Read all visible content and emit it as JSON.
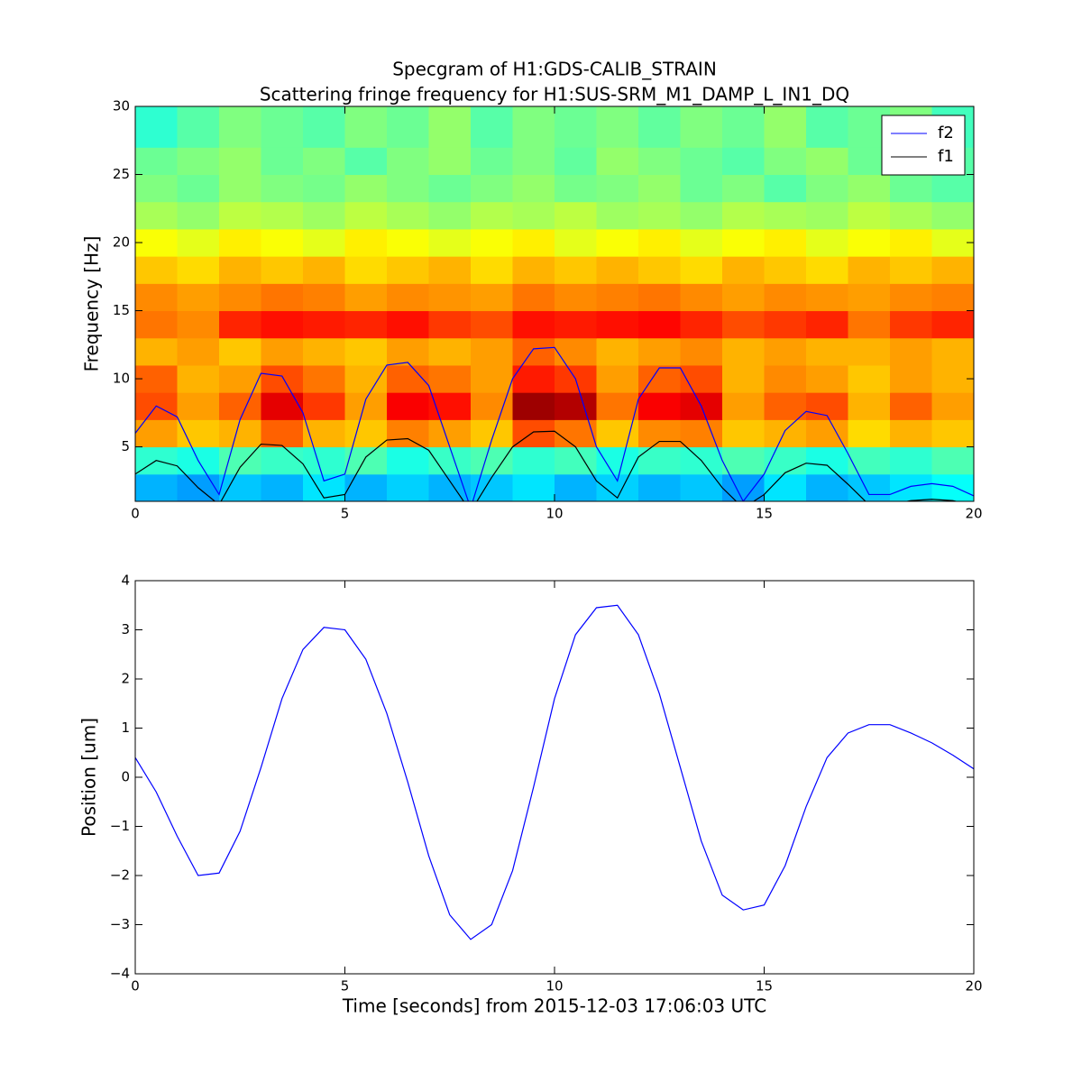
{
  "chart_data": [
    {
      "type": "heatmap",
      "title": "Specgram of H1:GDS-CALIB_STRAIN",
      "subtitle": "Scattering fringe frequency for H1:SUS-SRM_M1_DAMP_L_IN1_DQ",
      "ylabel": "Frequency [Hz]",
      "cmap": "jet",
      "xlim": [
        0,
        20
      ],
      "xticks": [
        0,
        5,
        10,
        15,
        20
      ],
      "ylim": [
        1,
        30
      ],
      "yticks": [
        5,
        10,
        15,
        20,
        25,
        30
      ],
      "xbins": [
        0,
        1,
        2,
        3,
        4,
        5,
        6,
        7,
        8,
        9,
        10,
        11,
        12,
        13,
        14,
        15,
        16,
        17,
        18,
        19,
        20
      ],
      "ybins": [
        1,
        3,
        5,
        7,
        9,
        11,
        13,
        15,
        17,
        19,
        21,
        23,
        25,
        27,
        30
      ],
      "z": [
        [
          0.3,
          0.28,
          0.32,
          0.3,
          0.35,
          0.3,
          0.33,
          0.3,
          0.32,
          0.35,
          0.3,
          0.33,
          0.3,
          0.32,
          0.28,
          0.35,
          0.3,
          0.32,
          0.35,
          0.38
        ],
        [
          0.42,
          0.4,
          0.45,
          0.43,
          0.42,
          0.45,
          0.4,
          0.43,
          0.45,
          0.42,
          0.44,
          0.4,
          0.43,
          0.42,
          0.45,
          0.43,
          0.4,
          0.44,
          0.42,
          0.45
        ],
        [
          0.72,
          0.68,
          0.7,
          0.78,
          0.7,
          0.68,
          0.75,
          0.72,
          0.68,
          0.8,
          0.76,
          0.68,
          0.74,
          0.75,
          0.68,
          0.7,
          0.72,
          0.66,
          0.7,
          0.68
        ],
        [
          0.8,
          0.72,
          0.78,
          0.9,
          0.82,
          0.72,
          0.88,
          0.86,
          0.74,
          0.97,
          0.95,
          0.76,
          0.88,
          0.9,
          0.72,
          0.78,
          0.8,
          0.7,
          0.78,
          0.72
        ],
        [
          0.78,
          0.7,
          0.72,
          0.8,
          0.76,
          0.7,
          0.78,
          0.76,
          0.72,
          0.85,
          0.82,
          0.72,
          0.78,
          0.8,
          0.7,
          0.74,
          0.72,
          0.68,
          0.72,
          0.7
        ],
        [
          0.7,
          0.72,
          0.68,
          0.72,
          0.7,
          0.68,
          0.72,
          0.7,
          0.72,
          0.78,
          0.74,
          0.7,
          0.72,
          0.74,
          0.7,
          0.72,
          0.7,
          0.7,
          0.72,
          0.7
        ],
        [
          0.76,
          0.74,
          0.84,
          0.86,
          0.85,
          0.84,
          0.86,
          0.82,
          0.8,
          0.86,
          0.85,
          0.86,
          0.87,
          0.84,
          0.8,
          0.82,
          0.84,
          0.76,
          0.82,
          0.84
        ],
        [
          0.74,
          0.72,
          0.74,
          0.76,
          0.75,
          0.72,
          0.74,
          0.73,
          0.72,
          0.76,
          0.74,
          0.75,
          0.76,
          0.74,
          0.72,
          0.74,
          0.73,
          0.72,
          0.74,
          0.75
        ],
        [
          0.68,
          0.66,
          0.7,
          0.68,
          0.7,
          0.66,
          0.68,
          0.7,
          0.66,
          0.7,
          0.68,
          0.7,
          0.68,
          0.66,
          0.7,
          0.68,
          0.66,
          0.7,
          0.68,
          0.7
        ],
        [
          0.62,
          0.6,
          0.64,
          0.62,
          0.6,
          0.64,
          0.62,
          0.6,
          0.62,
          0.64,
          0.6,
          0.62,
          0.64,
          0.6,
          0.62,
          0.64,
          0.6,
          0.62,
          0.64,
          0.6
        ],
        [
          0.54,
          0.52,
          0.56,
          0.55,
          0.53,
          0.56,
          0.54,
          0.52,
          0.55,
          0.54,
          0.56,
          0.53,
          0.54,
          0.52,
          0.55,
          0.54,
          0.53,
          0.56,
          0.54,
          0.52
        ],
        [
          0.5,
          0.48,
          0.52,
          0.5,
          0.49,
          0.52,
          0.5,
          0.48,
          0.5,
          0.52,
          0.49,
          0.5,
          0.52,
          0.48,
          0.5,
          0.46,
          0.5,
          0.52,
          0.48,
          0.46
        ],
        [
          0.48,
          0.5,
          0.52,
          0.48,
          0.5,
          0.46,
          0.5,
          0.52,
          0.48,
          0.5,
          0.47,
          0.52,
          0.5,
          0.48,
          0.46,
          0.5,
          0.52,
          0.48,
          0.5,
          0.46
        ],
        [
          0.42,
          0.46,
          0.5,
          0.48,
          0.46,
          0.5,
          0.48,
          0.52,
          0.46,
          0.5,
          0.48,
          0.5,
          0.47,
          0.5,
          0.48,
          0.52,
          0.46,
          0.48,
          0.5,
          0.44
        ]
      ],
      "x": [
        0,
        0.5,
        1,
        1.5,
        2,
        2.5,
        3,
        3.5,
        4,
        4.5,
        5,
        5.5,
        6,
        6.5,
        7,
        7.5,
        8,
        8.5,
        9,
        9.5,
        10,
        10.5,
        11,
        11.5,
        12,
        12.5,
        13,
        13.5,
        14,
        14.5,
        15,
        15.5,
        16,
        16.5,
        17,
        17.5,
        18,
        18.5,
        19,
        19.5,
        20
      ],
      "legend": "upper right",
      "series": [
        {
          "name": "f2",
          "color": "#0000ff",
          "values": [
            6,
            8.0,
            7.2,
            4,
            1.5,
            7,
            10.4,
            10.2,
            7.5,
            2.5,
            3,
            8.5,
            11,
            11.2,
            9.5,
            5,
            0.5,
            5.5,
            10,
            12.2,
            12.3,
            10,
            5,
            2.5,
            8.5,
            10.8,
            10.8,
            8,
            4,
            1,
            3,
            6.2,
            7.6,
            7.3,
            4.5,
            1.5,
            1.5,
            2.1,
            2.3,
            2.1,
            1.4
          ]
        },
        {
          "name": "f1",
          "color": "#000000",
          "values": [
            3,
            4.0,
            3.6,
            2,
            0.75,
            3.5,
            5.2,
            5.1,
            3.75,
            1.25,
            1.5,
            4.25,
            5.5,
            5.6,
            4.75,
            2.5,
            0.25,
            2.75,
            5,
            6.1,
            6.15,
            5,
            2.5,
            1.25,
            4.25,
            5.4,
            5.4,
            4,
            2,
            0.5,
            1.5,
            3.1,
            3.8,
            3.65,
            2.25,
            0.75,
            0.75,
            1.05,
            1.15,
            1.05,
            0.7
          ]
        }
      ]
    },
    {
      "type": "line",
      "xlabel": "Time [seconds] from 2015-12-03 17:06:03 UTC",
      "ylabel": "Position [um]",
      "xlim": [
        0,
        20
      ],
      "xticks": [
        0,
        5,
        10,
        15,
        20
      ],
      "ylim": [
        -4,
        4
      ],
      "yticks": [
        {
          "value": -4,
          "label": "−4"
        },
        {
          "value": -3,
          "label": "−3"
        },
        {
          "value": -2,
          "label": "−2"
        },
        {
          "value": -1,
          "label": "−1"
        },
        0,
        1,
        2,
        3,
        4
      ],
      "x": [
        0,
        0.5,
        1,
        1.5,
        2,
        2.5,
        3,
        3.5,
        4,
        4.5,
        5,
        5.5,
        6,
        6.5,
        7,
        7.5,
        8,
        8.5,
        9,
        9.5,
        10,
        10.5,
        11,
        11.5,
        12,
        12.5,
        13,
        13.5,
        14,
        14.5,
        15,
        15.5,
        16,
        16.5,
        17,
        17.5,
        18,
        18.5,
        19,
        19.5,
        20
      ],
      "series": [
        {
          "color": "#0000ff",
          "values": [
            0.4,
            -0.3,
            -1.2,
            -2.0,
            -1.95,
            -1.1,
            0.2,
            1.6,
            2.6,
            3.05,
            3.0,
            2.4,
            1.3,
            -0.1,
            -1.6,
            -2.8,
            -3.3,
            -3.0,
            -1.9,
            -0.2,
            1.6,
            2.9,
            3.45,
            3.5,
            2.9,
            1.7,
            0.2,
            -1.3,
            -2.4,
            -2.7,
            -2.6,
            -1.8,
            -0.6,
            0.4,
            0.9,
            1.07,
            1.07,
            0.9,
            0.7,
            0.45,
            0.17
          ]
        }
      ]
    }
  ]
}
